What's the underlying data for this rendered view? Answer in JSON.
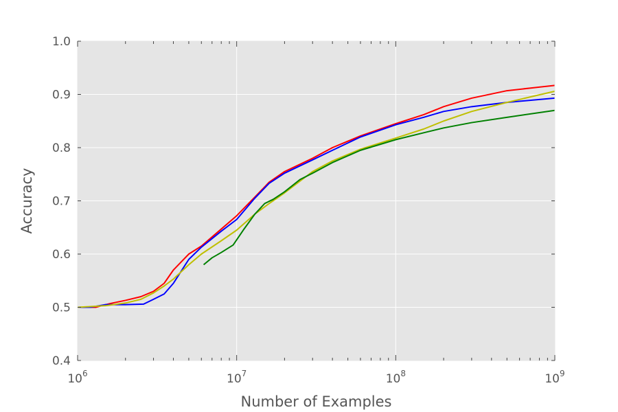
{
  "chart_data": {
    "type": "line",
    "title": "",
    "xlabel": "Number of Examples",
    "ylabel": "Accuracy",
    "x_scale": "log",
    "xlim": [
      1000000,
      1000000000
    ],
    "ylim": [
      0.4,
      1.0
    ],
    "grid": true,
    "x_ticks": [
      {
        "base": "10",
        "exp": "6"
      },
      {
        "base": "10",
        "exp": "7"
      },
      {
        "base": "10",
        "exp": "8"
      },
      {
        "base": "10",
        "exp": "9"
      }
    ],
    "y_ticks": [
      "0.4",
      "0.5",
      "0.6",
      "0.7",
      "0.8",
      "0.9",
      "1.0"
    ],
    "colors": {
      "background": "#e5e5e5",
      "grid": "#ffffff",
      "text": "#555555"
    },
    "series": [
      {
        "color": "#ff0000",
        "x": [
          1000000,
          1300000,
          1600000,
          2000000,
          2500000,
          3000000,
          3500000,
          4000000,
          5000000,
          6000000,
          8000000,
          10000000,
          13000000,
          16000000,
          20000000,
          30000000,
          40000000,
          60000000,
          100000000,
          150000000,
          200000000,
          300000000,
          500000000,
          1000000000
        ],
        "y": [
          0.5,
          0.5,
          0.507,
          0.513,
          0.52,
          0.53,
          0.545,
          0.57,
          0.6,
          0.615,
          0.647,
          0.672,
          0.707,
          0.735,
          0.755,
          0.78,
          0.8,
          0.822,
          0.845,
          0.862,
          0.877,
          0.893,
          0.907,
          0.917
        ]
      },
      {
        "color": "#0000ff",
        "x": [
          1000000,
          1200000,
          1500000,
          2000000,
          2600000,
          3000000,
          3500000,
          4000000,
          5000000,
          6000000,
          8000000,
          10000000,
          13000000,
          16000000,
          20000000,
          30000000,
          40000000,
          60000000,
          100000000,
          150000000,
          200000000,
          300000000,
          500000000,
          1000000000
        ],
        "y": [
          0.5,
          0.5,
          0.505,
          0.505,
          0.506,
          0.515,
          0.525,
          0.545,
          0.59,
          0.613,
          0.643,
          0.665,
          0.705,
          0.733,
          0.752,
          0.777,
          0.795,
          0.82,
          0.843,
          0.857,
          0.868,
          0.877,
          0.885,
          0.893
        ]
      },
      {
        "color": "#bfbf00",
        "x": [
          1000000,
          1500000,
          2000000,
          2500000,
          3000000,
          3500000,
          4000000,
          5000000,
          6000000,
          8000000,
          10000000,
          13000000,
          16000000,
          20000000,
          30000000,
          40000000,
          60000000,
          100000000,
          150000000,
          200000000,
          300000000,
          500000000,
          1000000000
        ],
        "y": [
          0.5,
          0.503,
          0.508,
          0.515,
          0.527,
          0.54,
          0.553,
          0.58,
          0.6,
          0.625,
          0.645,
          0.675,
          0.695,
          0.715,
          0.755,
          0.775,
          0.797,
          0.818,
          0.835,
          0.85,
          0.868,
          0.885,
          0.906
        ]
      },
      {
        "color": "#008000",
        "x": [
          6200000,
          7000000,
          8000000,
          9500000,
          11000000,
          13000000,
          15000000,
          17000000,
          20000000,
          25000000,
          30000000,
          40000000,
          60000000,
          100000000,
          150000000,
          200000000,
          300000000,
          500000000,
          1000000000
        ],
        "y": [
          0.58,
          0.593,
          0.603,
          0.617,
          0.645,
          0.675,
          0.695,
          0.703,
          0.717,
          0.74,
          0.752,
          0.772,
          0.795,
          0.815,
          0.828,
          0.837,
          0.847,
          0.857,
          0.87
        ]
      }
    ]
  }
}
